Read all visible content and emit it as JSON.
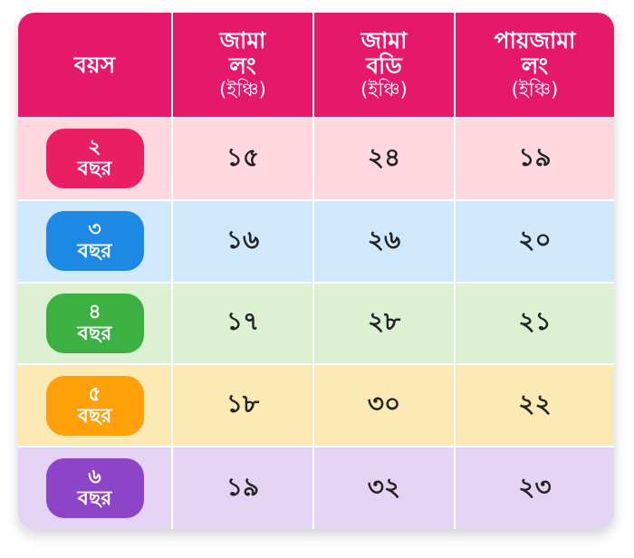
{
  "headers": [
    {
      "line1": "বয়স",
      "line2": "",
      "unit": ""
    },
    {
      "line1": "জামা",
      "line2": "লং",
      "unit": "(ইঞ্চি)"
    },
    {
      "line1": "জামা",
      "line2": "বডি",
      "unit": "(ইঞ্চি)"
    },
    {
      "line1": "পায়জামা",
      "line2": "লং",
      "unit": "(ইঞ্চি)"
    }
  ],
  "rows": [
    {
      "age_num": "২",
      "age_word": "বছর",
      "jama_long": "১৫",
      "jama_body": "২৪",
      "pajama_long": "১৯",
      "row_color": "#ffd7df",
      "pill_color": "#e91e63"
    },
    {
      "age_num": "৩",
      "age_word": "বছর",
      "jama_long": "১৬",
      "jama_body": "২৬",
      "pajama_long": "২০",
      "row_color": "#cfe8fb",
      "pill_color": "#1e88e5"
    },
    {
      "age_num": "৪",
      "age_word": "বছর",
      "jama_long": "১৭",
      "jama_body": "২৮",
      "pajama_long": "২১",
      "row_color": "#dcf0d2",
      "pill_color": "#3cb043"
    },
    {
      "age_num": "৫",
      "age_word": "বছর",
      "jama_long": "১৮",
      "jama_body": "৩০",
      "pajama_long": "২২",
      "row_color": "#fde9b3",
      "pill_color": "#ff9f0a"
    },
    {
      "age_num": "৬",
      "age_word": "বছর",
      "jama_long": "১৯",
      "jama_body": "৩২",
      "pajama_long": "২৩",
      "row_color": "#e4d3f5",
      "pill_color": "#8e44c9"
    }
  ],
  "colors": {
    "header_bg": "#e6186a",
    "header_text": "#ffffff"
  }
}
